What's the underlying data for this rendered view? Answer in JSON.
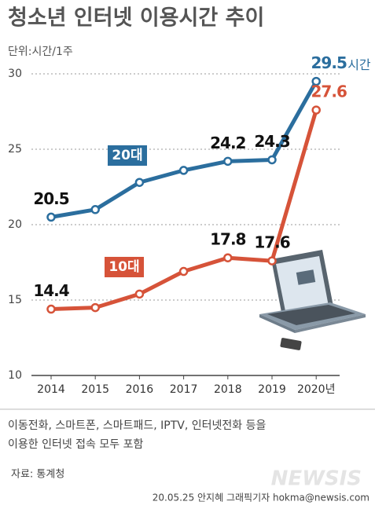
{
  "chart_data": {
    "type": "line",
    "title": "청소년 인터넷 이용시간 추이",
    "subtitle": "단위:시간/1주",
    "categories": [
      "2014",
      "2015",
      "2016",
      "2017",
      "2018",
      "2019",
      "2020년"
    ],
    "series": [
      {
        "name": "20대",
        "color": "#2b6e9e",
        "values": [
          20.5,
          21.0,
          22.8,
          23.6,
          24.2,
          24.3,
          29.5
        ],
        "value_labels": [
          "20.5",
          null,
          null,
          null,
          "24.2",
          "24.3",
          "29.5"
        ]
      },
      {
        "name": "10대",
        "color": "#d65339",
        "values": [
          14.4,
          14.5,
          15.4,
          16.9,
          17.8,
          17.6,
          27.6
        ],
        "value_labels": [
          "14.4",
          null,
          null,
          null,
          "17.8",
          "17.6",
          "27.6"
        ]
      }
    ],
    "value_unit": "시간",
    "ylim": [
      10,
      30
    ],
    "yticks": [
      10,
      15,
      20,
      25,
      30
    ],
    "grid": true,
    "notes": [
      "이동전화, 스마트폰, 스마트패드, IPTV, 인터넷전화 등을",
      "이용한 인터넷 접속 모두 포함"
    ],
    "source": "자료: 통계청",
    "watermark": "NEWSIS",
    "credit": "20.05.25 안지혜 그래픽기자 hokma@newsis.com"
  }
}
